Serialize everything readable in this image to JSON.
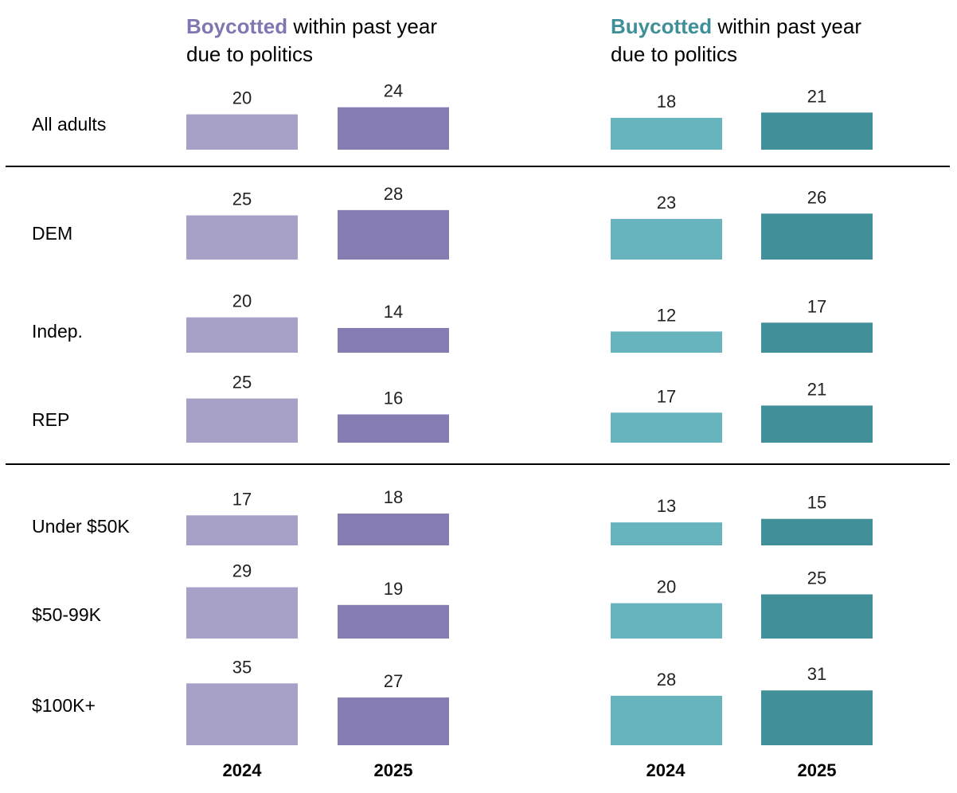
{
  "chart_data": {
    "type": "bar",
    "panels": [
      {
        "title_key": "Boycotted",
        "title_rest_line1": " within past year",
        "title_line2": "due to politics",
        "key_color": "#8177b0",
        "colors": {
          "2024": "#a7a1c8",
          "2025": "#857cb2"
        }
      },
      {
        "title_key": "Buycotted",
        "title_rest_line1": " within past year",
        "title_line2": "due to politics",
        "key_color": "#3f8f98",
        "colors": {
          "2024": "#67b4bf",
          "2025": "#418f98"
        }
      }
    ],
    "years": [
      "2024",
      "2025"
    ],
    "categories": [
      "All adults",
      "DEM",
      "Indep.",
      "REP",
      "Under $50K",
      "$50-99K",
      "$100K+"
    ],
    "series": [
      {
        "panel": "Boycotted",
        "year": "2024",
        "values": [
          20,
          25,
          20,
          25,
          17,
          29,
          35
        ]
      },
      {
        "panel": "Boycotted",
        "year": "2025",
        "values": [
          24,
          28,
          14,
          16,
          18,
          19,
          27
        ]
      },
      {
        "panel": "Buycotted",
        "year": "2024",
        "values": [
          18,
          23,
          12,
          17,
          13,
          20,
          28
        ]
      },
      {
        "panel": "Buycotted",
        "year": "2025",
        "values": [
          21,
          26,
          17,
          21,
          15,
          25,
          31
        ]
      }
    ],
    "group_separators_after": [
      "All adults",
      "REP"
    ],
    "grid": false,
    "legend": "none"
  }
}
